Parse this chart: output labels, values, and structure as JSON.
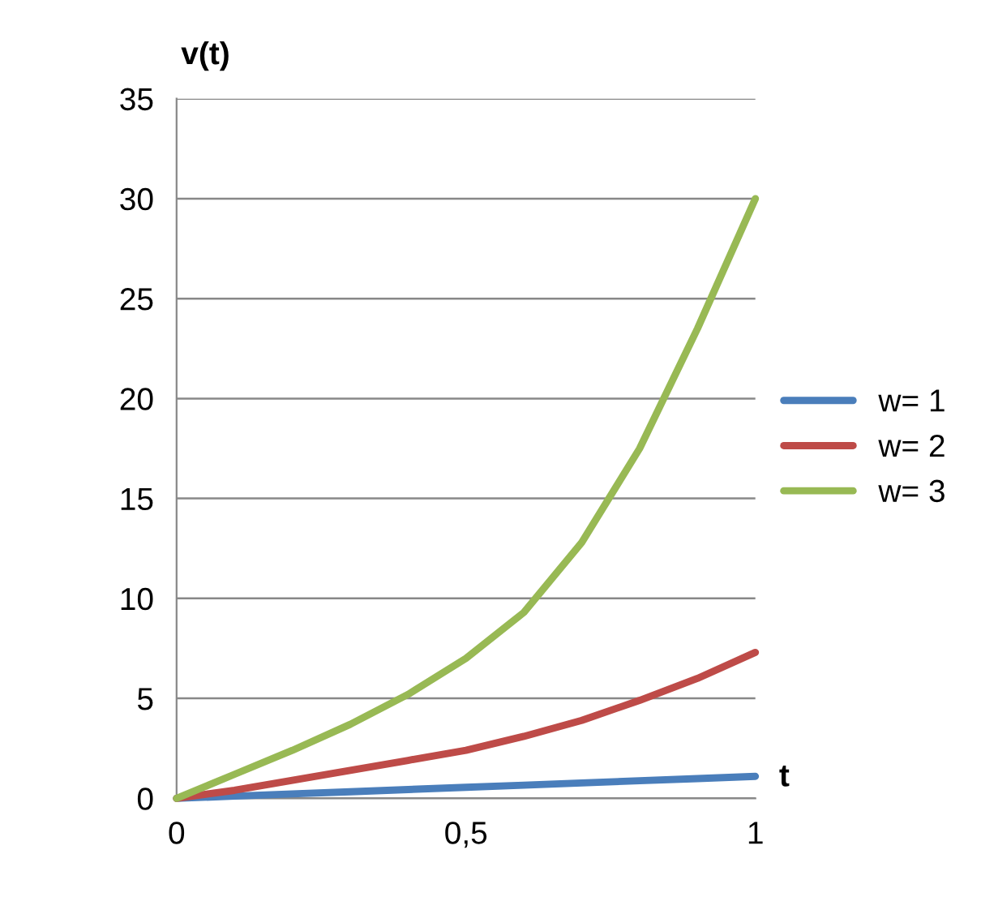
{
  "chart_data": {
    "type": "line",
    "xlabel": "t",
    "ylabel": "v(t)",
    "x": [
      0,
      0.1,
      0.2,
      0.3,
      0.4,
      0.5,
      0.6,
      0.7,
      0.8,
      0.9,
      1
    ],
    "series": [
      {
        "name": "w= 1",
        "color": "#4a7ebb",
        "values": [
          0,
          0.11,
          0.22,
          0.33,
          0.44,
          0.55,
          0.66,
          0.77,
          0.88,
          0.99,
          1.1
        ]
      },
      {
        "name": "w= 2",
        "color": "#be4b48",
        "values": [
          0,
          0.4,
          0.9,
          1.4,
          1.9,
          2.4,
          3.1,
          3.9,
          4.9,
          6,
          7.3
        ]
      },
      {
        "name": "w= 3",
        "color": "#98b954",
        "values": [
          0,
          1.2,
          2.4,
          3.7,
          5.2,
          7,
          9.3,
          12.8,
          17.5,
          23.5,
          30
        ]
      }
    ],
    "xlim": [
      0,
      1
    ],
    "ylim": [
      0,
      35
    ],
    "xticks": [
      0,
      {
        "value": 0.5,
        "label": "0,5"
      },
      1
    ],
    "yticks": [
      0,
      5,
      10,
      15,
      20,
      25,
      30,
      35
    ],
    "grid": "y",
    "legend": "right",
    "marker": "none",
    "line_style": "solid"
  }
}
